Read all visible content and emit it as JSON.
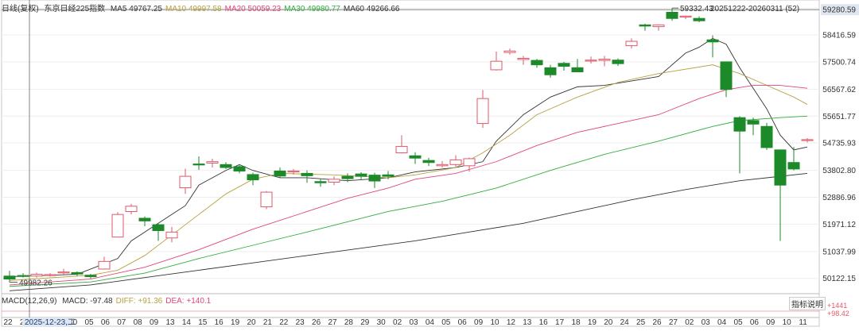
{
  "header": {
    "period": "日线(复权)",
    "name": "东京日经225指数",
    "ma": [
      {
        "label": "MA5",
        "value": "49767.25",
        "color": "#333333"
      },
      {
        "label": "MA10",
        "value": "49997.58",
        "color": "#b8a040"
      },
      {
        "label": "MA20",
        "value": "50059.23",
        "color": "#e0457a"
      },
      {
        "label": "MA30",
        "value": "49980.77",
        "color": "#2fae3c"
      },
      {
        "label": "MA60",
        "value": "49266.66",
        "color": "#333333"
      }
    ]
  },
  "macd": {
    "title": "MACD(12,26,9)",
    "items": [
      {
        "label": "MACD:",
        "value": "-97.48",
        "color": "#333333"
      },
      {
        "label": "DIFF:",
        "value": "+91.36",
        "color": "#b8a040"
      },
      {
        "label": "DEA:",
        "value": "+140.1",
        "color": "#e0457a"
      }
    ],
    "button": "指标说明",
    "axis_labels": [
      "+1441",
      "+98.42"
    ]
  },
  "chart_data": {
    "type": "candlestick",
    "price_axis_labels": [
      "59332.43",
      "59280.59",
      "58416.59",
      "57500.74",
      "56567.62",
      "55651.77",
      "54735.93",
      "53802.80",
      "52886.96",
      "51971.12",
      "51037.99",
      "50122.15"
    ],
    "price_axis_range": [
      49600,
      59500
    ],
    "date_range_label": "20251222-20260311 (52)",
    "high_label": "59332.43",
    "low_label": "49982.26",
    "current_price_level": 59280.59,
    "crosshair_date_label": "2025-12-23,二",
    "x_tick_labels": [
      "22",
      "23",
      "26",
      "29",
      "30",
      "05",
      "06",
      "07",
      "08",
      "09",
      "13",
      "14",
      "15",
      "16",
      "19",
      "20",
      "21",
      "22",
      "23",
      "26",
      "27",
      "28",
      "29",
      "30",
      "02",
      "03",
      "04",
      "05",
      "06",
      "09",
      "10",
      "12",
      "13",
      "16",
      "17",
      "18",
      "19",
      "20",
      "24",
      "25",
      "26",
      "27",
      "02",
      "03",
      "04",
      "05",
      "06",
      "09",
      "10",
      "11"
    ],
    "candles": [
      [
        50200,
        50100,
        50380,
        49990
      ],
      [
        50220,
        50200,
        50300,
        50150
      ],
      [
        50200,
        50260,
        50320,
        50150
      ],
      [
        50240,
        50250,
        50300,
        50180
      ],
      [
        50320,
        50340,
        50450,
        50250
      ],
      [
        50320,
        50270,
        50360,
        50200
      ],
      [
        50230,
        50180,
        50280,
        50120
      ],
      [
        50440,
        50700,
        50860,
        50420
      ],
      [
        51530,
        52300,
        52380,
        51520
      ],
      [
        52400,
        52580,
        52660,
        52300
      ],
      [
        52170,
        52080,
        52230,
        51900
      ],
      [
        51950,
        51750,
        51980,
        51400
      ],
      [
        51500,
        51700,
        51880,
        51350
      ],
      [
        53210,
        53600,
        53860,
        53000
      ],
      [
        54020,
        54000,
        54280,
        53820
      ],
      [
        54050,
        54100,
        54200,
        53900
      ],
      [
        54000,
        53900,
        54080,
        53850
      ],
      [
        53930,
        53780,
        53980,
        53700
      ],
      [
        53660,
        53480,
        53720,
        53300
      ],
      [
        52560,
        53060,
        53100,
        52480
      ],
      [
        53780,
        53610,
        53900,
        53560
      ],
      [
        53780,
        53780,
        53850,
        53660
      ],
      [
        53700,
        53620,
        53800,
        53380
      ],
      [
        53420,
        53380,
        53500,
        53240
      ],
      [
        53400,
        53500,
        53600,
        53300
      ],
      [
        53600,
        53520,
        53700,
        53400
      ],
      [
        53680,
        53600,
        53740,
        53500
      ],
      [
        53640,
        53440,
        53720,
        53200
      ],
      [
        53650,
        53600,
        53780,
        53500
      ],
      [
        54400,
        54620,
        55000,
        54380
      ],
      [
        54300,
        54220,
        54420,
        54020
      ],
      [
        54140,
        54070,
        54230,
        53950
      ],
      [
        53960,
        54000,
        54120,
        53900
      ],
      [
        54000,
        54160,
        54320,
        53920
      ],
      [
        53960,
        54200,
        54240,
        53760
      ],
      [
        55400,
        56250,
        56540,
        55250
      ],
      [
        57230,
        57520,
        57850,
        57200
      ],
      [
        57820,
        57870,
        57950,
        57750
      ],
      [
        57580,
        57620,
        57700,
        57400
      ],
      [
        57550,
        57400,
        57600,
        57300
      ],
      [
        57300,
        57060,
        57400,
        56960
      ],
      [
        57450,
        57350,
        57500,
        57200
      ],
      [
        57300,
        57160,
        57600,
        57150
      ],
      [
        57560,
        57560,
        57680,
        57440
      ],
      [
        57550,
        57590,
        57700,
        57350
      ],
      [
        57560,
        57440,
        57620,
        57360
      ],
      [
        58050,
        58200,
        58300,
        57950
      ],
      [
        58760,
        58720,
        58800,
        58560
      ],
      [
        58700,
        58760,
        58780,
        58560
      ],
      [
        59190,
        58980,
        59332,
        58900
      ],
      [
        59050,
        59060,
        59080,
        58960
      ],
      [
        58980,
        58900,
        59050,
        58850
      ],
      [
        58250,
        58180,
        58400,
        57650
      ],
      [
        57500,
        56560,
        56780,
        56300
      ],
      [
        55600,
        55140,
        55650,
        53700
      ],
      [
        55500,
        55380,
        55600,
        55000
      ],
      [
        55300,
        54580,
        55420,
        54500
      ],
      [
        54500,
        53300,
        54500,
        51400
      ],
      [
        54070,
        53850,
        54600,
        53800
      ],
      [
        54830,
        54850,
        54900,
        54750
      ]
    ],
    "ma_series": [
      {
        "name": "MA5",
        "color": "#333333",
        "values": [
          [
            0,
            50180
          ],
          [
            5,
            50260
          ],
          [
            8,
            50800
          ],
          [
            9,
            51400
          ],
          [
            11,
            52000
          ],
          [
            12,
            52300
          ],
          [
            13,
            52600
          ],
          [
            14,
            53300
          ],
          [
            16,
            53800
          ],
          [
            17,
            54000
          ],
          [
            18,
            53800
          ],
          [
            20,
            53550
          ],
          [
            22,
            53550
          ],
          [
            25,
            53450
          ],
          [
            28,
            53550
          ],
          [
            29,
            53650
          ],
          [
            30,
            53750
          ],
          [
            33,
            53900
          ],
          [
            35,
            54100
          ],
          [
            36,
            54800
          ],
          [
            38,
            55700
          ],
          [
            40,
            56300
          ],
          [
            42,
            56650
          ],
          [
            44,
            56700
          ],
          [
            48,
            57000
          ],
          [
            50,
            57800
          ],
          [
            51,
            58000
          ],
          [
            52,
            58300
          ],
          [
            53,
            58100
          ],
          [
            54,
            57300
          ],
          [
            55,
            56600
          ],
          [
            56,
            55900
          ],
          [
            57,
            55000
          ],
          [
            58,
            54500
          ],
          [
            59,
            54600
          ]
        ]
      },
      {
        "name": "MA10",
        "color": "#b8a040",
        "values": [
          [
            0,
            50050
          ],
          [
            6,
            50230
          ],
          [
            8,
            50400
          ],
          [
            10,
            50900
          ],
          [
            12,
            51600
          ],
          [
            14,
            52300
          ],
          [
            16,
            53000
          ],
          [
            18,
            53500
          ],
          [
            20,
            53700
          ],
          [
            24,
            53650
          ],
          [
            28,
            53550
          ],
          [
            30,
            53650
          ],
          [
            33,
            53900
          ],
          [
            35,
            54400
          ],
          [
            37,
            55000
          ],
          [
            39,
            55700
          ],
          [
            42,
            56300
          ],
          [
            45,
            56800
          ],
          [
            48,
            57100
          ],
          [
            52,
            57400
          ],
          [
            54,
            57100
          ],
          [
            56,
            56700
          ],
          [
            58,
            56300
          ],
          [
            59,
            56050
          ]
        ]
      },
      {
        "name": "MA20",
        "color": "#e0457a",
        "values": [
          [
            0,
            49900
          ],
          [
            6,
            50100
          ],
          [
            10,
            50500
          ],
          [
            14,
            51100
          ],
          [
            18,
            51800
          ],
          [
            22,
            52400
          ],
          [
            25,
            52850
          ],
          [
            28,
            53200
          ],
          [
            30,
            53500
          ],
          [
            33,
            53700
          ],
          [
            36,
            54100
          ],
          [
            39,
            54650
          ],
          [
            42,
            55100
          ],
          [
            45,
            55400
          ],
          [
            48,
            55700
          ],
          [
            51,
            56250
          ],
          [
            53,
            56550
          ],
          [
            55,
            56700
          ],
          [
            57,
            56700
          ],
          [
            59,
            56600
          ]
        ]
      },
      {
        "name": "MA30",
        "color": "#2fae3c",
        "values": [
          [
            0,
            49850
          ],
          [
            6,
            50000
          ],
          [
            10,
            50300
          ],
          [
            14,
            50800
          ],
          [
            18,
            51250
          ],
          [
            22,
            51700
          ],
          [
            25,
            52050
          ],
          [
            28,
            52400
          ],
          [
            32,
            52750
          ],
          [
            36,
            53200
          ],
          [
            40,
            53800
          ],
          [
            44,
            54350
          ],
          [
            48,
            54800
          ],
          [
            52,
            55300
          ],
          [
            54,
            55500
          ],
          [
            57,
            55600
          ],
          [
            59,
            55650
          ]
        ]
      },
      {
        "name": "MA60",
        "color": "#333333",
        "values": [
          [
            0,
            49700
          ],
          [
            6,
            49900
          ],
          [
            10,
            50150
          ],
          [
            14,
            50400
          ],
          [
            18,
            50650
          ],
          [
            22,
            50900
          ],
          [
            26,
            51150
          ],
          [
            30,
            51400
          ],
          [
            34,
            51700
          ],
          [
            38,
            52000
          ],
          [
            42,
            52400
          ],
          [
            46,
            52800
          ],
          [
            50,
            53150
          ],
          [
            54,
            53450
          ],
          [
            57,
            53600
          ],
          [
            59,
            53700
          ]
        ]
      }
    ]
  }
}
